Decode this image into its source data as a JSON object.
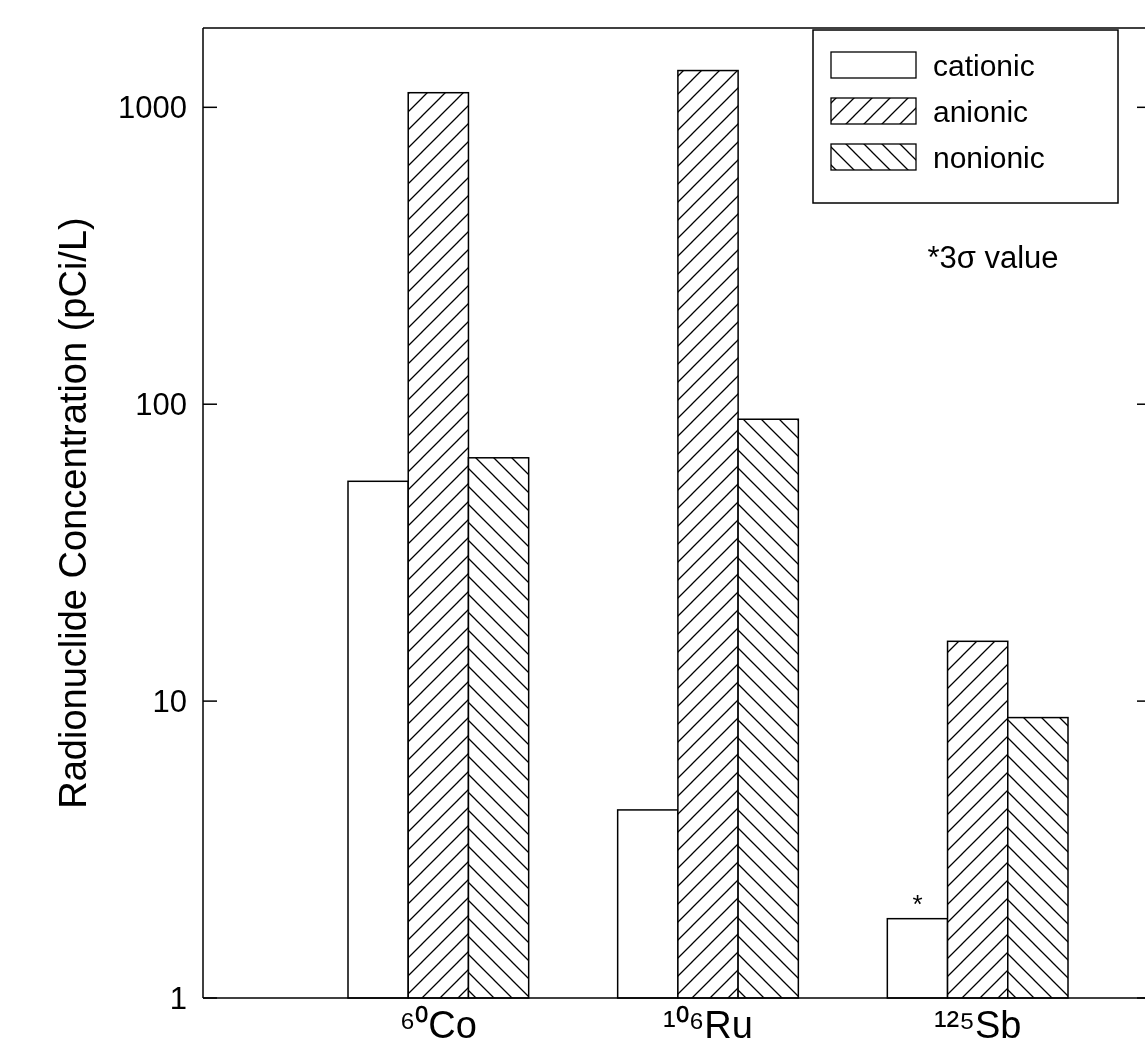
{
  "chart_data": {
    "type": "bar",
    "ylabel": "Radionuclide Concentration (pCi/L)",
    "categories": [
      "⁶⁰Co",
      "¹⁰⁶Ru",
      "¹²⁵Sb"
    ],
    "series": [
      {
        "name": "cationic",
        "color": "#ffffff",
        "values": [
          55,
          4.3,
          1.85
        ]
      },
      {
        "name": "anionic",
        "color": "#000000",
        "values": [
          1120,
          1330,
          15.9
        ]
      },
      {
        "name": "nonionic",
        "color": "#000000",
        "values": [
          66,
          89,
          8.8
        ]
      }
    ],
    "log": true,
    "ylim": [
      1,
      1850
    ],
    "yticks": [
      1,
      10,
      100,
      1000
    ],
    "grid": false,
    "legend": "top right",
    "annotations": [
      "*3σ value",
      "*"
    ]
  }
}
